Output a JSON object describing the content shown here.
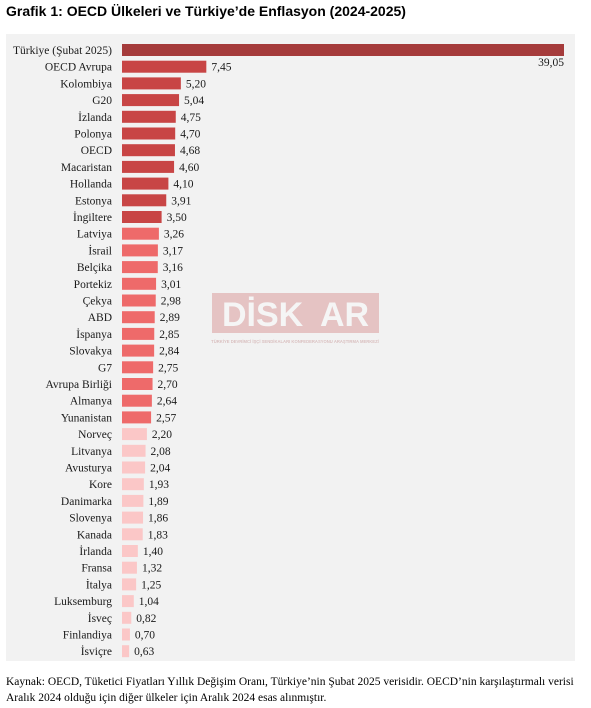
{
  "header": {
    "title": "Grafik 1: OECD Ülkeleri ve Türkiye’de Enflasyon (2024-2025)"
  },
  "watermark": {
    "text_left": "DİSK",
    "text_right": "AR",
    "tagline": "TÜRKİYE DEVRİMCİ İŞÇİ SENDİKALARI KONFEDERASYONU ARAŞTIRMA MERKEZİ"
  },
  "colors": {
    "max": "#a53b3b",
    "high": "#c84545",
    "mid": "#ee6a6a",
    "low": "#fbc7c7",
    "background": "#f2f2f2"
  },
  "chart_data": {
    "type": "bar",
    "orientation": "horizontal",
    "title": "Grafik 1: OECD Ülkeleri ve Türkiye’de Enflasyon (2024-2025)",
    "xlabel": "",
    "ylabel": "",
    "xlim": [
      0,
      39.05
    ],
    "grid": false,
    "legend": "none",
    "decimal_separator": ",",
    "categories": [
      "Türkiye (Şubat 2025)",
      "OECD Avrupa",
      "Kolombiya",
      "G20",
      "İzlanda",
      "Polonya",
      "OECD",
      "Macaristan",
      "Hollanda",
      "Estonya",
      "İngiltere",
      "Latviya",
      "İsrail",
      "Belçika",
      "Portekiz",
      "Çekya",
      "ABD",
      "İspanya",
      "Slovakya",
      "G7",
      "Avrupa Birliği",
      "Almanya",
      "Yunanistan",
      "Norveç",
      "Litvanya",
      "Avusturya",
      "Kore",
      "Danimarka",
      "Slovenya",
      "Kanada",
      "İrlanda",
      "Fransa",
      "İtalya",
      "Luksemburg",
      "İsveç",
      "Finlandiya",
      "İsviçre"
    ],
    "values": [
      39.05,
      7.45,
      5.2,
      5.04,
      4.75,
      4.7,
      4.68,
      4.6,
      4.1,
      3.91,
      3.5,
      3.26,
      3.17,
      3.16,
      3.01,
      2.98,
      2.89,
      2.85,
      2.84,
      2.75,
      2.7,
      2.64,
      2.57,
      2.2,
      2.08,
      2.04,
      1.93,
      1.89,
      1.86,
      1.83,
      1.4,
      1.32,
      1.25,
      1.04,
      0.82,
      0.7,
      0.63
    ]
  },
  "footer": {
    "source_line1": "Kaynak: OECD, Tüketici Fiyatları Yıllık Değişim Oranı, Türkiye’nin Şubat 2025 verisidir. OECD’nin karşılaştırmalı verisi",
    "source_line2": "Aralık 2024 olduğu için diğer ülkeler için Aralık 2024 esas alınmıştır."
  }
}
